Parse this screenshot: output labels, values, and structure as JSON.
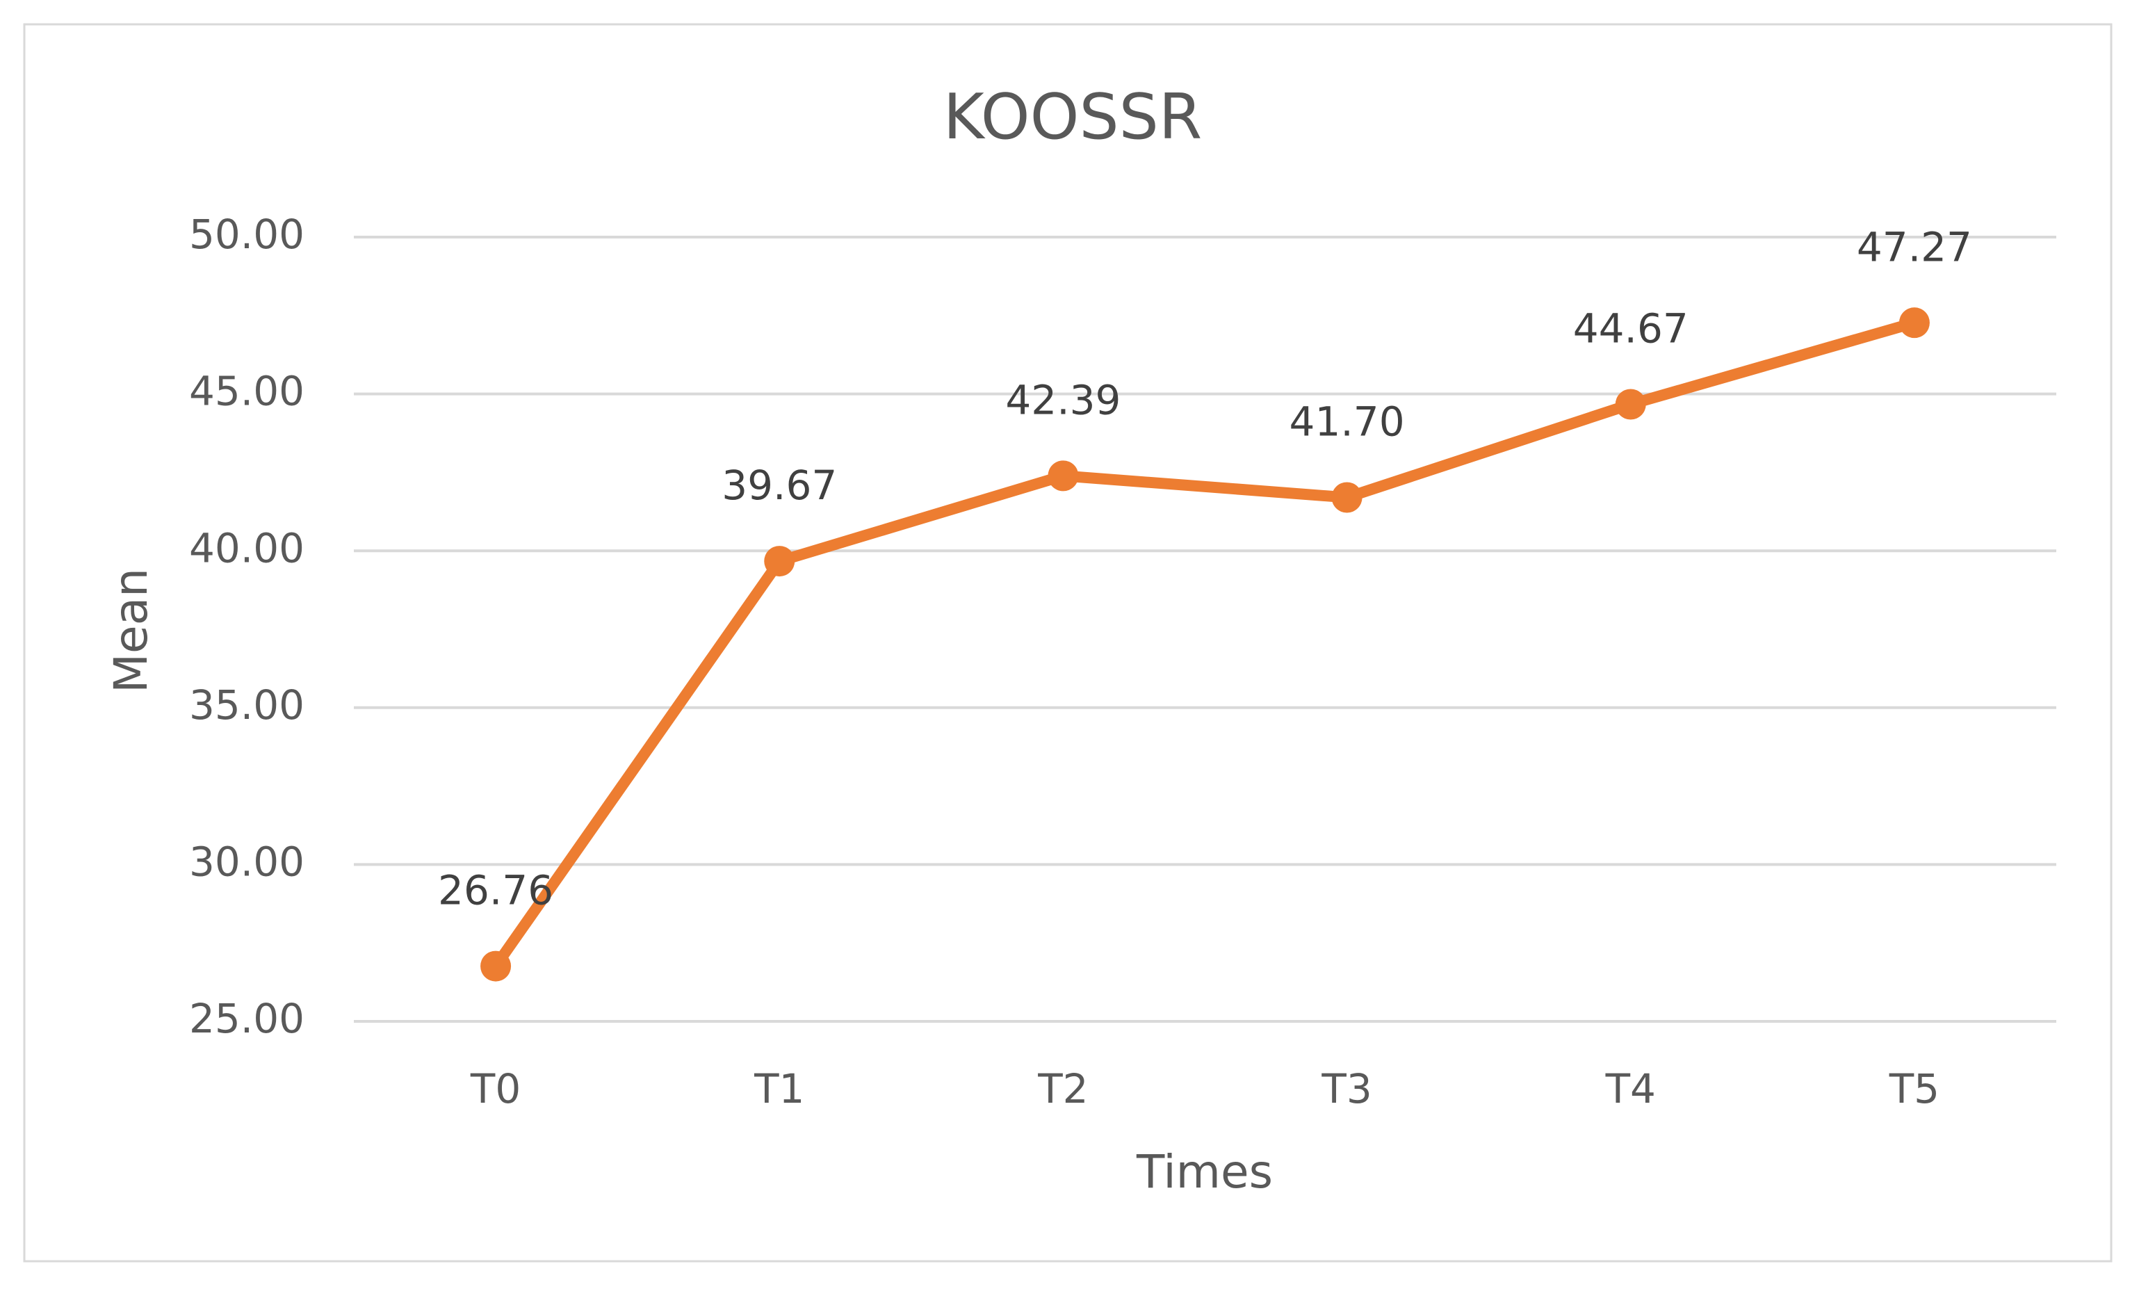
{
  "chart_data": {
    "type": "line",
    "title": "KOOSSR",
    "x_label": "Times",
    "y_label": "Mean",
    "categories": [
      "T0",
      "T1",
      "T2",
      "T3",
      "T4",
      "T5"
    ],
    "values": [
      26.76,
      39.67,
      42.39,
      41.7,
      44.67,
      47.27
    ],
    "value_labels": [
      "26.76",
      "39.67",
      "42.39",
      "41.70",
      "44.67",
      "47.27"
    ],
    "color": "#ed7d31",
    "ylim": [
      25,
      50
    ],
    "yticks": [
      {
        "value": 25,
        "label": "25.00"
      },
      {
        "value": 30,
        "label": "30.00"
      },
      {
        "value": 35,
        "label": "35.00"
      },
      {
        "value": 40,
        "label": "40.00"
      },
      {
        "value": 45,
        "label": "45.00"
      },
      {
        "value": 50,
        "label": "50.00"
      }
    ],
    "grid": true
  }
}
